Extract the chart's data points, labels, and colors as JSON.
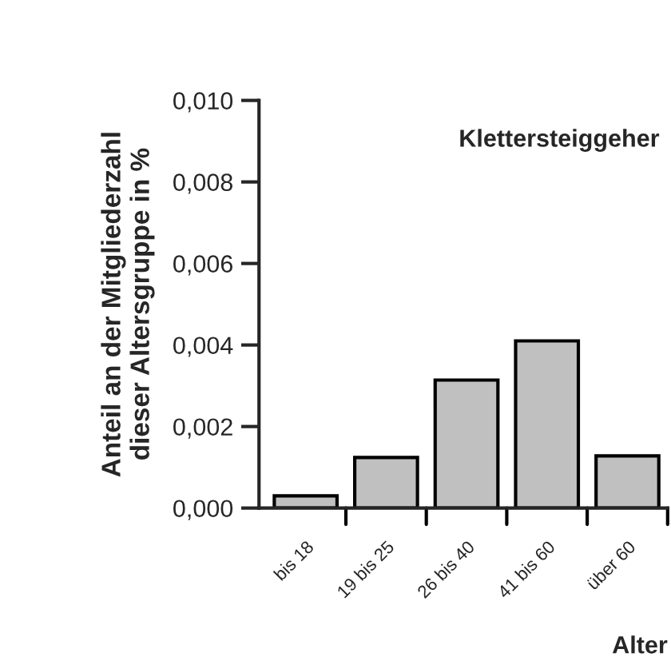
{
  "chart_data": {
    "type": "bar",
    "title": "Klettersteiggeher",
    "xlabel": "Alter",
    "ylabel": "Anteil an der Mitgliederzahl\ndieser Altersgruppe in %",
    "categories": [
      "bis 18",
      "19 bis 25",
      "26 bis 40",
      "41 bis 60",
      "über 60"
    ],
    "values": [
      0.0003,
      0.00124,
      0.00314,
      0.0041,
      0.00128
    ],
    "color": "#c0c0c0",
    "ylim": [
      0,
      0.01
    ],
    "yticks": [
      {
        "value": 0,
        "label": "0,000"
      },
      {
        "value": 0.002,
        "label": "0,002"
      },
      {
        "value": 0.004,
        "label": "0,004"
      },
      {
        "value": 0.006,
        "label": "0,006"
      },
      {
        "value": 0.008,
        "label": "0,008"
      },
      {
        "value": 0.01,
        "label": "0,010"
      }
    ],
    "grid": false
  }
}
